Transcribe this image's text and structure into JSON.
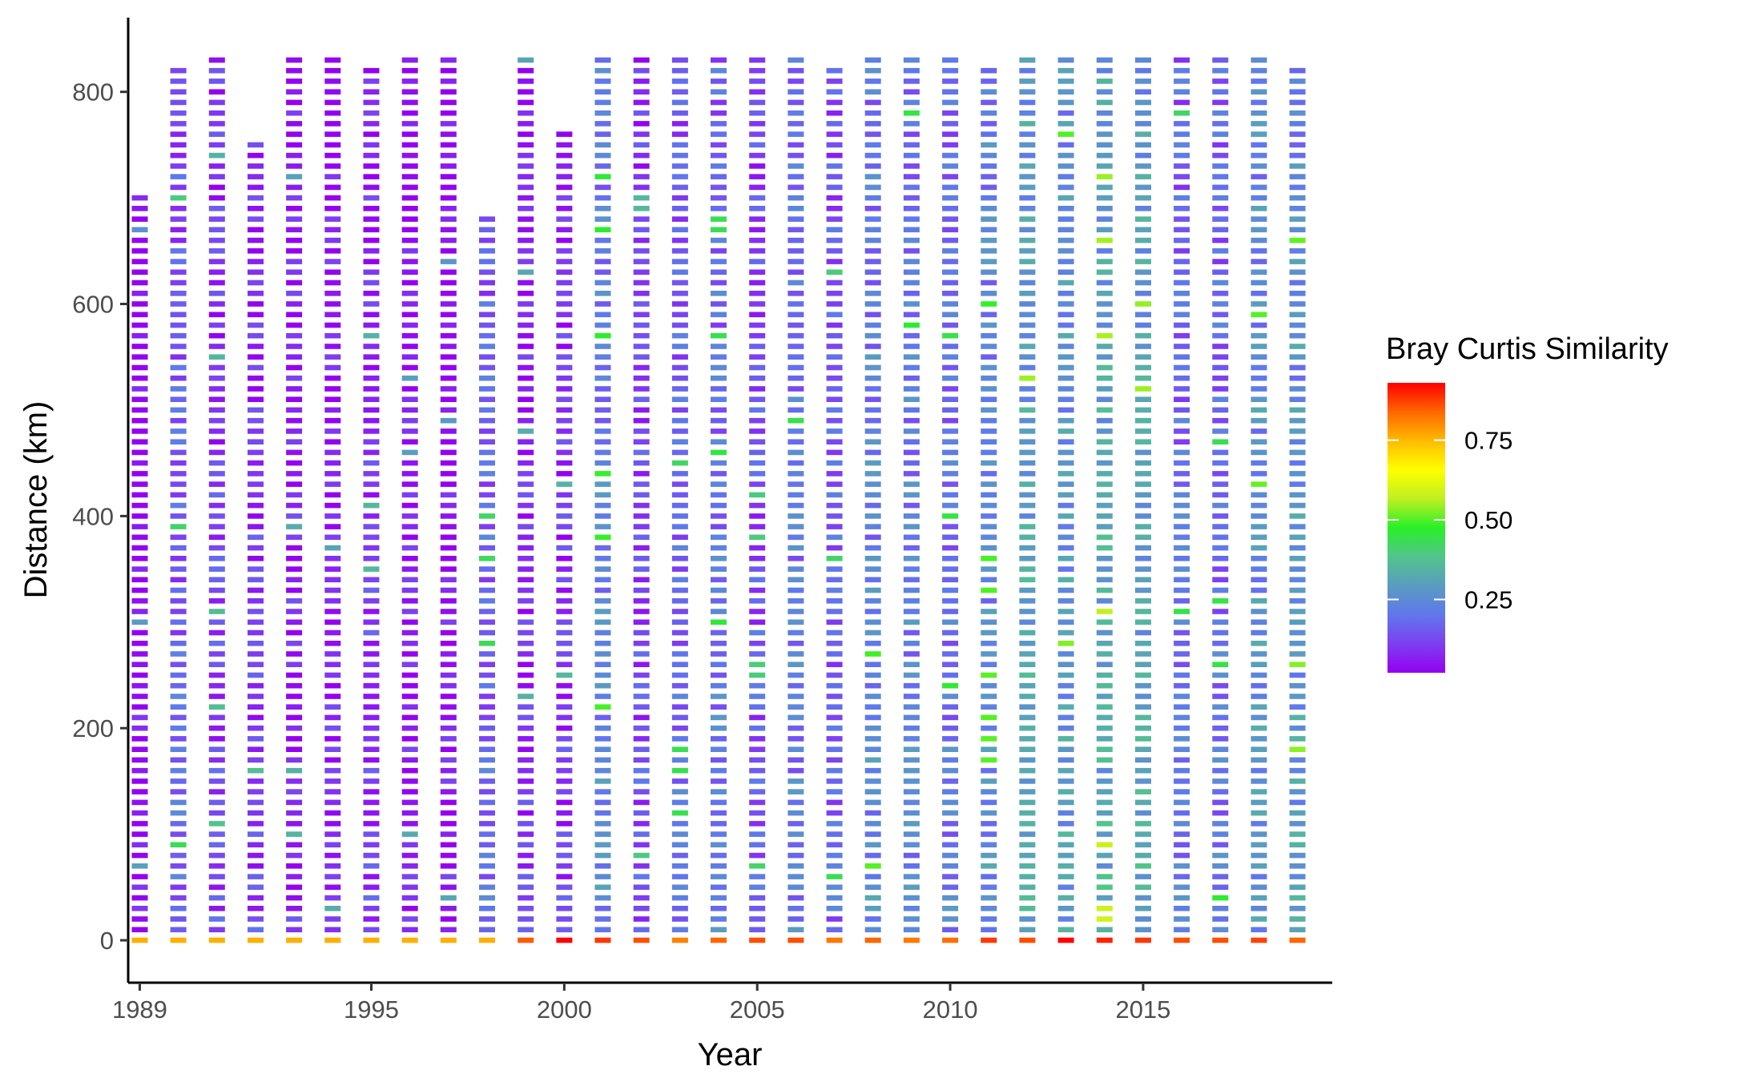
{
  "chart_data": {
    "type": "heatmap",
    "title": "",
    "xlabel": "Year",
    "ylabel": "Distance (km)",
    "x_ticks": [
      1989,
      1995,
      2000,
      2005,
      2010,
      2015
    ],
    "y_ticks": [
      0,
      200,
      400,
      600,
      800
    ],
    "xlim": [
      1988.7,
      2019.9
    ],
    "ylim": [
      -40,
      870
    ],
    "grid": false,
    "cell_step_km": 10,
    "colorbar": {
      "title": "Bray Curtis Similarity",
      "ticks": [
        0.25,
        0.5,
        0.75
      ],
      "range": [
        0.02,
        0.93
      ],
      "palette": [
        "#9400f0",
        "#7d3ff0",
        "#5f78ec",
        "#5a9cc0",
        "#52c48c",
        "#28f028",
        "#bff021",
        "#ffff00",
        "#ffbb00",
        "#ff6600",
        "#ff0000"
      ],
      "placement": "right"
    },
    "columns": [
      {
        "x": 1989,
        "max_km": 700,
        "base": 0.05,
        "diag": 0.76
      },
      {
        "x": 1990,
        "max_km": 820,
        "base": 0.18,
        "diag": 0.76
      },
      {
        "x": 1991,
        "max_km": 830,
        "base": 0.13,
        "diag": 0.76
      },
      {
        "x": 1992,
        "max_km": 750,
        "base": 0.12,
        "diag": 0.76
      },
      {
        "x": 1993,
        "max_km": 830,
        "base": 0.09,
        "diag": 0.76
      },
      {
        "x": 1994,
        "max_km": 830,
        "base": 0.08,
        "diag": 0.76
      },
      {
        "x": 1995,
        "max_km": 820,
        "base": 0.12,
        "diag": 0.76
      },
      {
        "x": 1996,
        "max_km": 830,
        "base": 0.07,
        "diag": 0.76
      },
      {
        "x": 1997,
        "max_km": 830,
        "base": 0.06,
        "diag": 0.76
      },
      {
        "x": 1998,
        "max_km": 680,
        "base": 0.19,
        "diag": 0.76
      },
      {
        "x": 1999,
        "max_km": 830,
        "base": 0.1,
        "diag": 0.85
      },
      {
        "x": 2000,
        "max_km": 760,
        "base": 0.11,
        "diag": 0.93
      },
      {
        "x": 2001,
        "max_km": 830,
        "base": 0.25,
        "diag": 0.88
      },
      {
        "x": 2002,
        "max_km": 830,
        "base": 0.14,
        "diag": 0.86
      },
      {
        "x": 2003,
        "max_km": 830,
        "base": 0.19,
        "diag": 0.81
      },
      {
        "x": 2004,
        "max_km": 830,
        "base": 0.22,
        "diag": 0.84
      },
      {
        "x": 2005,
        "max_km": 830,
        "base": 0.16,
        "diag": 0.86
      },
      {
        "x": 2006,
        "max_km": 830,
        "base": 0.22,
        "diag": 0.86
      },
      {
        "x": 2007,
        "max_km": 820,
        "base": 0.18,
        "diag": 0.82
      },
      {
        "x": 2008,
        "max_km": 830,
        "base": 0.25,
        "diag": 0.84
      },
      {
        "x": 2009,
        "max_km": 830,
        "base": 0.24,
        "diag": 0.82
      },
      {
        "x": 2010,
        "max_km": 830,
        "base": 0.22,
        "diag": 0.83
      },
      {
        "x": 2011,
        "max_km": 820,
        "base": 0.26,
        "diag": 0.88
      },
      {
        "x": 2012,
        "max_km": 830,
        "base": 0.32,
        "diag": 0.86
      },
      {
        "x": 2013,
        "max_km": 830,
        "base": 0.29,
        "diag": 0.93
      },
      {
        "x": 2014,
        "max_km": 830,
        "base": 0.33,
        "diag": 0.9
      },
      {
        "x": 2015,
        "max_km": 830,
        "base": 0.32,
        "diag": 0.88
      },
      {
        "x": 2016,
        "max_km": 830,
        "base": 0.21,
        "diag": 0.86
      },
      {
        "x": 2017,
        "max_km": 830,
        "base": 0.21,
        "diag": 0.86
      },
      {
        "x": 2018,
        "max_km": 830,
        "base": 0.28,
        "diag": 0.87
      },
      {
        "x": 2019,
        "max_km": 820,
        "base": 0.29,
        "diag": 0.84
      }
    ]
  }
}
